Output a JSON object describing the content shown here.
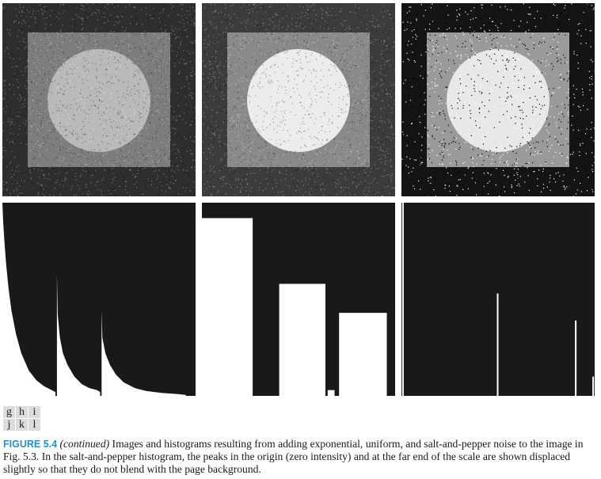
{
  "panel_labels": [
    [
      "g",
      "h",
      "i"
    ],
    [
      "j",
      "k",
      "l"
    ]
  ],
  "caption": {
    "figure_label": "FIGURE 5.4",
    "continued": "(continued)",
    "text": " Images and histograms resulting from adding exponential, uniform, and salt-and-pepper noise to the image in Fig. 5.3. In the salt-and-pepper histogram, the peaks in the origin (zero intensity) and at the far end of the scale are shown displaced slightly so that they do not blend with the page background."
  },
  "noise_images": [
    {
      "noise": "exponential",
      "background": "#2e2e2e",
      "square": "#7d7d7d",
      "circle": "#b9b9b9"
    },
    {
      "noise": "uniform",
      "background": "#3c3c3c",
      "square": "#8a8a8a",
      "circle": "#ececec"
    },
    {
      "noise": "salt-and-pepper",
      "background": "#141414",
      "square": "#9a9a9a",
      "circle": "#e8e8e8"
    }
  ],
  "colors": {
    "histogram_background": "#1a1919",
    "histogram_bars": "#ffffff",
    "figure_label": "#2a8fc0"
  },
  "chart_data": [
    {
      "type": "area",
      "panel": "j",
      "grid": false,
      "xlim": [
        0,
        255
      ],
      "ylim": [
        0,
        1
      ],
      "series": [
        {
          "x": [
            0,
            1,
            3,
            5,
            8,
            12,
            18,
            25,
            35,
            45,
            55,
            65,
            70
          ],
          "y": [
            1.0,
            0.9,
            0.78,
            0.68,
            0.56,
            0.44,
            0.32,
            0.22,
            0.13,
            0.08,
            0.05,
            0.03,
            0.02
          ]
        },
        {
          "x": [
            72,
            73,
            76,
            80,
            86,
            95,
            105,
            115,
            125,
            129
          ],
          "y": [
            0.63,
            0.42,
            0.3,
            0.22,
            0.16,
            0.1,
            0.06,
            0.04,
            0.03,
            0.02
          ]
        },
        {
          "x": [
            131,
            132,
            136,
            142,
            150,
            160,
            175,
            190,
            210,
            230,
            242
          ],
          "y": [
            0.44,
            0.3,
            0.22,
            0.16,
            0.11,
            0.07,
            0.04,
            0.025,
            0.015,
            0.01,
            0.005
          ]
        }
      ]
    },
    {
      "type": "area",
      "panel": "k",
      "grid": false,
      "xlim": [
        0,
        255
      ],
      "ylim": [
        0,
        1
      ],
      "series": [
        {
          "x": [
            0,
            67
          ],
          "y": [
            0.92,
            0.92
          ]
        },
        {
          "x": [
            102,
            163
          ],
          "y": [
            0.58,
            0.58
          ]
        },
        {
          "x": [
            166,
            175
          ],
          "y": [
            0.03,
            0.03
          ]
        },
        {
          "x": [
            181,
            244
          ],
          "y": [
            0.43,
            0.43
          ]
        }
      ]
    },
    {
      "type": "bar",
      "panel": "l",
      "grid": false,
      "xlim": [
        0,
        255
      ],
      "ylim": [
        0,
        1
      ],
      "x": [
        2,
        127,
        230,
        253
      ],
      "values": [
        1.0,
        0.53,
        0.39,
        0.1
      ]
    }
  ]
}
